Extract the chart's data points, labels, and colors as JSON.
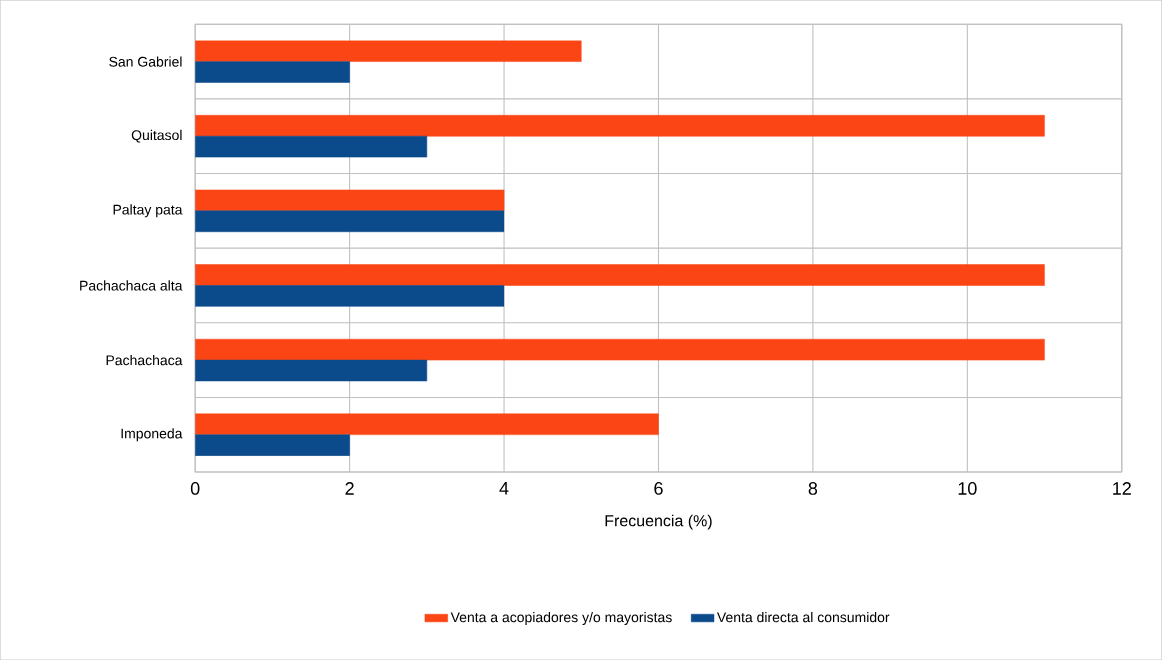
{
  "chart_data": {
    "type": "bar",
    "orientation": "horizontal",
    "xlabel": "Frecuencia (%)",
    "categories": [
      "San Gabriel",
      "Quitasol",
      "Paltay pata",
      "Pachachaca alta",
      "Pachachaca",
      "Imponeda"
    ],
    "series": [
      {
        "name": "Venta a acopiadores y/o mayoristas",
        "color": "#fc4514",
        "values": [
          5,
          11,
          4,
          11,
          11,
          6
        ]
      },
      {
        "name": "Venta directa al consumidor",
        "color": "#0b4a8b",
        "values": [
          2,
          3,
          4,
          4,
          3,
          2
        ]
      }
    ],
    "xlim": [
      0,
      12
    ],
    "xticks": [
      0,
      2,
      4,
      6,
      8,
      10,
      12
    ],
    "grid": true,
    "legend": "bottom"
  }
}
